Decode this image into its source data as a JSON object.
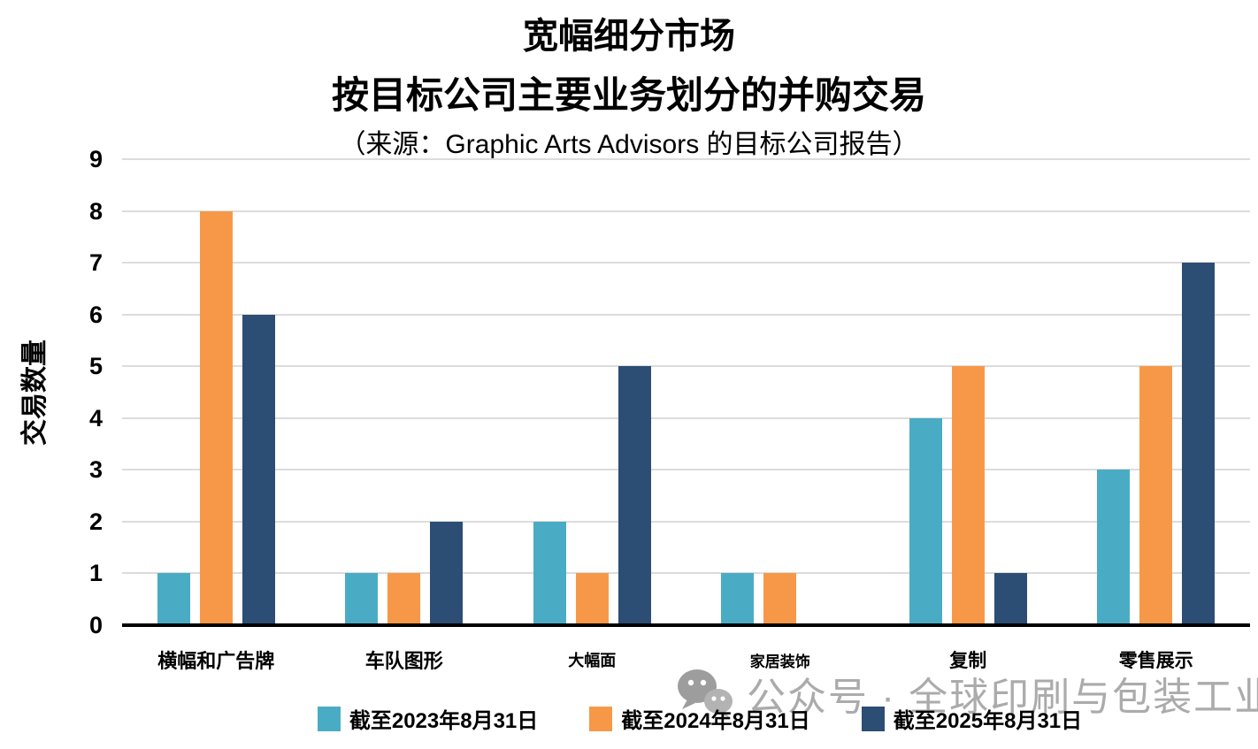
{
  "title": {
    "line1": "宽幅细分市场",
    "line2": "按目标公司主要业务划分的并购交易",
    "source": "（来源：Graphic Arts Advisors 的目标公司报告）"
  },
  "y_axis": {
    "label": "交易数量",
    "min": 0,
    "max": 9,
    "tick_step": 1
  },
  "legend": {
    "items": [
      {
        "label": "截至2023年8月31日",
        "color": "#4AACC4"
      },
      {
        "label": "截至2024年8月31日",
        "color": "#F79849"
      },
      {
        "label": "截至2025年8月31日",
        "color": "#2C4D74"
      }
    ]
  },
  "watermark": {
    "icon": "wechat-icon",
    "text": "公众号 · 全球印刷与包装工业"
  },
  "colors": {
    "series_teal": "#4AACC4",
    "series_orange": "#F79849",
    "series_navy": "#2C4D74",
    "gridline": "#DCDCDC",
    "axis_line": "#000000",
    "watermark_gray": "#ABABAB"
  },
  "chart_data": {
    "type": "bar",
    "title": "宽幅细分市场",
    "subtitle": "按目标公司主要业务划分的并购交易",
    "source": "（来源：Graphic Arts Advisors 的目标公司报告）",
    "categories": [
      "横幅和广告牌",
      "车队图形",
      "大幅面",
      "家居装饰",
      "复制",
      "零售展示"
    ],
    "series": [
      {
        "name": "截至2023年8月31日",
        "color": "#4AACC4",
        "values": [
          1,
          1,
          2,
          1,
          4,
          3
        ]
      },
      {
        "name": "截至2024年8月31日",
        "color": "#F79849",
        "values": [
          8,
          1,
          1,
          1,
          5,
          5
        ]
      },
      {
        "name": "截至2025年8月31日",
        "color": "#2C4D74",
        "values": [
          6,
          2,
          5,
          0,
          1,
          7
        ]
      }
    ],
    "xlabel": "",
    "ylabel": "交易数量",
    "ylim": [
      0,
      9
    ],
    "grid": true,
    "legend_position": "bottom"
  }
}
